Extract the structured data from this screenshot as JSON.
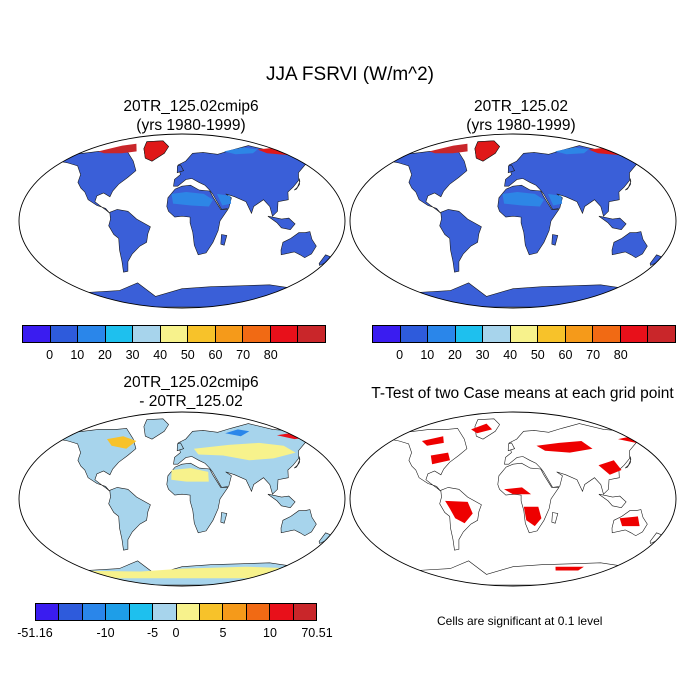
{
  "title": "JJA FSRVI (W/m^2)",
  "panels": [
    {
      "line1": "20TR_125.02cmip6",
      "line2": "(yrs 1980-1999)"
    },
    {
      "line1": "20TR_125.02",
      "line2": "(yrs 1980-1999)"
    },
    {
      "line1": "20TR_125.02cmip6",
      "line2": "- 20TR_125.02"
    },
    {
      "line1": "T-Test of two Case means at each grid point",
      "line2": ""
    }
  ],
  "colorbar_main": {
    "colors": [
      "#3a1cf0",
      "#2e5bdc",
      "#2a86ea",
      "#1ec0ee",
      "#a7d4ec",
      "#f7f28c",
      "#f7c22a",
      "#f59a1a",
      "#f16a14",
      "#e8101a",
      "#c9262a"
    ],
    "labels": [
      "0",
      "10",
      "20",
      "30",
      "40",
      "50",
      "60",
      "70",
      "80"
    ]
  },
  "colorbar_diff": {
    "colors": [
      "#3a1cf0",
      "#2e5bdc",
      "#2a86ea",
      "#1e9ee8",
      "#1ec0ee",
      "#a7d4ec",
      "#f7f28c",
      "#f7c22a",
      "#f59a1a",
      "#f16a14",
      "#e8101a",
      "#c9262a"
    ],
    "labels": [
      "-51.16",
      "-10",
      "-5",
      "0",
      "5",
      "10",
      "70.51"
    ]
  },
  "significance_note": "Cells are significant at 0.1 level",
  "map_colors": {
    "land_main": "#3a5fd8",
    "land_main_alt": "#2d86e6",
    "ice_main": "#e01818",
    "ice_main_alt": "#c9262a",
    "land_diff": "#a7d4ec",
    "diff_pos": "#f7f28c",
    "diff_pos2": "#f7c22a",
    "diff_neg": "#2a86ea",
    "sig": "#ee0000"
  }
}
